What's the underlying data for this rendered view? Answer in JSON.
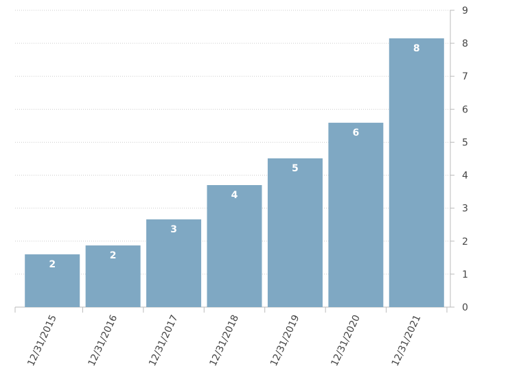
{
  "chart_data": {
    "type": "bar",
    "categories": [
      "12/31/2015",
      "12/31/2016",
      "12/31/2017",
      "12/31/2018",
      "12/31/2019",
      "12/31/2020",
      "12/31/2021"
    ],
    "values": [
      1.6,
      1.87,
      2.66,
      3.7,
      4.51,
      5.59,
      8.15
    ],
    "value_labels": [
      "2",
      "2",
      "3",
      "4",
      "5",
      "6",
      "8"
    ],
    "color": "#7fa8c3",
    "ylim": [
      0,
      9
    ],
    "yticks": [
      0,
      1,
      2,
      3,
      4,
      5,
      6,
      7,
      8,
      9
    ],
    "grid": true
  }
}
